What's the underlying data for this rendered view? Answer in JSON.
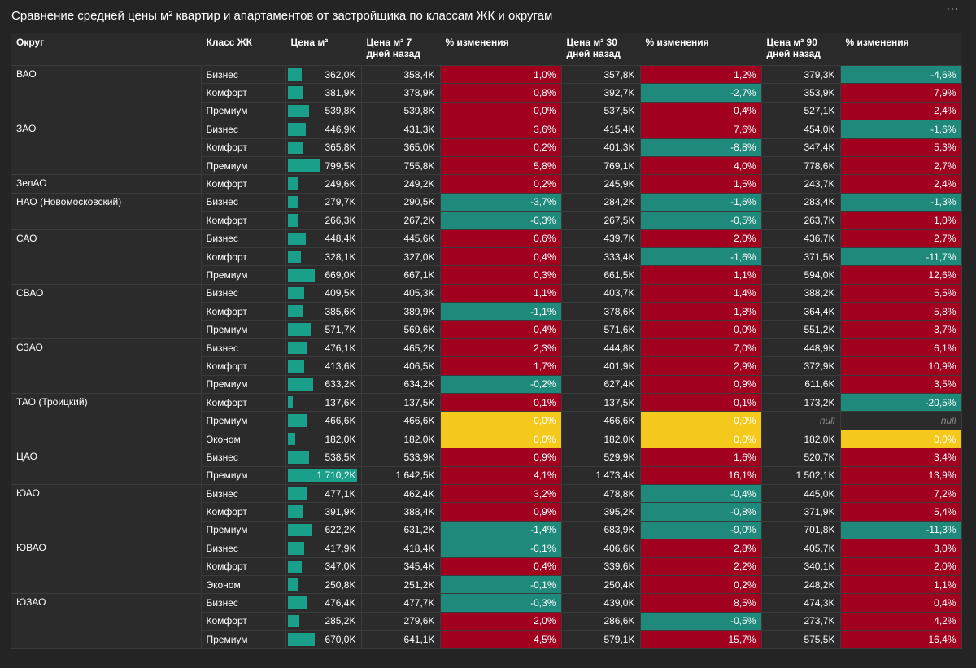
{
  "title": "Сравнение средней цены м² квартир и апартаментов от застройщика по классам ЖК и округам",
  "menu_icon": "more-dots-icon",
  "colors": {
    "positive": "#a1001f",
    "negative": "#1f8a7c",
    "zero": "#f5c81c",
    "bar": "#1aa08a",
    "background": "#242424"
  },
  "headers": {
    "okrug": "Округ",
    "klass": "Класс ЖК",
    "price": "Цена м²",
    "price7": "Цена м² 7 дней назад",
    "chg7": "% изменения",
    "price30": "Цена м² 30 дней назад",
    "chg30": "% изменения",
    "price90": "Цена м² 90 дней назад",
    "chg90": "% изменения"
  },
  "bar_max": 1710.2,
  "groups": [
    {
      "okrug": "ВАО",
      "rows": [
        {
          "klass": "Бизнес",
          "price": "362,0K",
          "price_value": 362.0,
          "p7": "358,4K",
          "c7": "1,0%",
          "c7v": 1.0,
          "p30": "357,8K",
          "c30": "1,2%",
          "c30v": 1.2,
          "p90": "379,3K",
          "c90": "-4,6%",
          "c90v": -4.6
        },
        {
          "klass": "Комфорт",
          "price": "381,9K",
          "price_value": 381.9,
          "p7": "378,9K",
          "c7": "0,8%",
          "c7v": 0.8,
          "p30": "392,7K",
          "c30": "-2,7%",
          "c30v": -2.7,
          "p90": "353,9K",
          "c90": "7,9%",
          "c90v": 7.9
        },
        {
          "klass": "Премиум",
          "price": "539,8K",
          "price_value": 539.8,
          "p7": "539,8K",
          "c7": "0,0%",
          "c7v": 0.01,
          "p30": "537,5K",
          "c30": "0,4%",
          "c30v": 0.4,
          "p90": "527,1K",
          "c90": "2,4%",
          "c90v": 2.4
        }
      ]
    },
    {
      "okrug": "ЗАО",
      "rows": [
        {
          "klass": "Бизнес",
          "price": "446,9K",
          "price_value": 446.9,
          "p7": "431,3K",
          "c7": "3,6%",
          "c7v": 3.6,
          "p30": "415,4K",
          "c30": "7,6%",
          "c30v": 7.6,
          "p90": "454,0K",
          "c90": "-1,6%",
          "c90v": -1.6
        },
        {
          "klass": "Комфорт",
          "price": "365,8K",
          "price_value": 365.8,
          "p7": "365,0K",
          "c7": "0,2%",
          "c7v": 0.2,
          "p30": "401,3K",
          "c30": "-8,8%",
          "c30v": -8.8,
          "p90": "347,4K",
          "c90": "5,3%",
          "c90v": 5.3
        },
        {
          "klass": "Премиум",
          "price": "799,5K",
          "price_value": 799.5,
          "p7": "755,8K",
          "c7": "5,8%",
          "c7v": 5.8,
          "p30": "769,1K",
          "c30": "4,0%",
          "c30v": 4.0,
          "p90": "778,6K",
          "c90": "2,7%",
          "c90v": 2.7
        }
      ]
    },
    {
      "okrug": "ЗелАО",
      "rows": [
        {
          "klass": "Комфорт",
          "price": "249,6K",
          "price_value": 249.6,
          "p7": "249,2K",
          "c7": "0,2%",
          "c7v": 0.2,
          "p30": "245,9K",
          "c30": "1,5%",
          "c30v": 1.5,
          "p90": "243,7K",
          "c90": "2,4%",
          "c90v": 2.4
        }
      ]
    },
    {
      "okrug": "НАО (Новомосковский)",
      "rows": [
        {
          "klass": "Бизнес",
          "price": "279,7K",
          "price_value": 279.7,
          "p7": "290,5K",
          "c7": "-3,7%",
          "c7v": -3.7,
          "p30": "284,2K",
          "c30": "-1,6%",
          "c30v": -1.6,
          "p90": "283,4K",
          "c90": "-1,3%",
          "c90v": -1.3
        },
        {
          "klass": "Комфорт",
          "price": "266,3K",
          "price_value": 266.3,
          "p7": "267,2K",
          "c7": "-0,3%",
          "c7v": -0.3,
          "p30": "267,5K",
          "c30": "-0,5%",
          "c30v": -0.5,
          "p90": "263,7K",
          "c90": "1,0%",
          "c90v": 1.0
        }
      ]
    },
    {
      "okrug": "САО",
      "rows": [
        {
          "klass": "Бизнес",
          "price": "448,4K",
          "price_value": 448.4,
          "p7": "445,6K",
          "c7": "0,6%",
          "c7v": 0.6,
          "p30": "439,7K",
          "c30": "2,0%",
          "c30v": 2.0,
          "p90": "436,7K",
          "c90": "2,7%",
          "c90v": 2.7
        },
        {
          "klass": "Комфорт",
          "price": "328,1K",
          "price_value": 328.1,
          "p7": "327,0K",
          "c7": "0,4%",
          "c7v": 0.4,
          "p30": "333,4K",
          "c30": "-1,6%",
          "c30v": -1.6,
          "p90": "371,5K",
          "c90": "-11,7%",
          "c90v": -11.7
        },
        {
          "klass": "Премиум",
          "price": "669,0K",
          "price_value": 669.0,
          "p7": "667,1K",
          "c7": "0,3%",
          "c7v": 0.3,
          "p30": "661,5K",
          "c30": "1,1%",
          "c30v": 1.1,
          "p90": "594,0K",
          "c90": "12,6%",
          "c90v": 12.6
        }
      ]
    },
    {
      "okrug": "СВАО",
      "rows": [
        {
          "klass": "Бизнес",
          "price": "409,5K",
          "price_value": 409.5,
          "p7": "405,3K",
          "c7": "1,1%",
          "c7v": 1.1,
          "p30": "403,7K",
          "c30": "1,4%",
          "c30v": 1.4,
          "p90": "388,2K",
          "c90": "5,5%",
          "c90v": 5.5
        },
        {
          "klass": "Комфорт",
          "price": "385,6K",
          "price_value": 385.6,
          "p7": "389,9K",
          "c7": "-1,1%",
          "c7v": -1.1,
          "p30": "378,6K",
          "c30": "1,8%",
          "c30v": 1.8,
          "p90": "364,4K",
          "c90": "5,8%",
          "c90v": 5.8
        },
        {
          "klass": "Премиум",
          "price": "571,7K",
          "price_value": 571.7,
          "p7": "569,6K",
          "c7": "0,4%",
          "c7v": 0.4,
          "p30": "571,6K",
          "c30": "0,0%",
          "c30v": 0.01,
          "p90": "551,2K",
          "c90": "3,7%",
          "c90v": 3.7
        }
      ]
    },
    {
      "okrug": "СЗАО",
      "rows": [
        {
          "klass": "Бизнес",
          "price": "476,1K",
          "price_value": 476.1,
          "p7": "465,2K",
          "c7": "2,3%",
          "c7v": 2.3,
          "p30": "444,8K",
          "c30": "7,0%",
          "c30v": 7.0,
          "p90": "448,9K",
          "c90": "6,1%",
          "c90v": 6.1
        },
        {
          "klass": "Комфорт",
          "price": "413,6K",
          "price_value": 413.6,
          "p7": "406,5K",
          "c7": "1,7%",
          "c7v": 1.7,
          "p30": "401,9K",
          "c30": "2,9%",
          "c30v": 2.9,
          "p90": "372,9K",
          "c90": "10,9%",
          "c90v": 10.9
        },
        {
          "klass": "Премиум",
          "price": "633,2K",
          "price_value": 633.2,
          "p7": "634,2K",
          "c7": "-0,2%",
          "c7v": -0.2,
          "p30": "627,4K",
          "c30": "0,9%",
          "c30v": 0.9,
          "p90": "611,6K",
          "c90": "3,5%",
          "c90v": 3.5
        }
      ]
    },
    {
      "okrug": "ТАО (Троицкий)",
      "rows": [
        {
          "klass": "Комфорт",
          "price": "137,6K",
          "price_value": 137.6,
          "p7": "137,5K",
          "c7": "0,1%",
          "c7v": 0.1,
          "p30": "137,5K",
          "c30": "0,1%",
          "c30v": 0.1,
          "p90": "173,2K",
          "c90": "-20,5%",
          "c90v": -20.5
        },
        {
          "klass": "Премиум",
          "price": "466,6K",
          "price_value": 466.6,
          "p7": "466,6K",
          "c7": "0,0%",
          "c7v": 0,
          "p30": "466,6K",
          "c30": "0,0%",
          "c30v": 0,
          "p90": "null",
          "c90": "null",
          "c90v": null
        },
        {
          "klass": "Эконом",
          "price": "182,0K",
          "price_value": 182.0,
          "p7": "182,0K",
          "c7": "0,0%",
          "c7v": 0,
          "p30": "182,0K",
          "c30": "0,0%",
          "c30v": 0,
          "p90": "182,0K",
          "c90": "0,0%",
          "c90v": 0
        }
      ]
    },
    {
      "okrug": "ЦАО",
      "rows": [
        {
          "klass": "Бизнес",
          "price": "538,5K",
          "price_value": 538.5,
          "p7": "533,9K",
          "c7": "0,9%",
          "c7v": 0.9,
          "p30": "529,9K",
          "c30": "1,6%",
          "c30v": 1.6,
          "p90": "520,7K",
          "c90": "3,4%",
          "c90v": 3.4
        },
        {
          "klass": "Премиум",
          "price": "1 710,2K",
          "price_value": 1710.2,
          "p7": "1 642,5K",
          "c7": "4,1%",
          "c7v": 4.1,
          "p30": "1 473,4K",
          "c30": "16,1%",
          "c30v": 16.1,
          "p90": "1 502,1K",
          "c90": "13,9%",
          "c90v": 13.9
        }
      ]
    },
    {
      "okrug": "ЮАО",
      "rows": [
        {
          "klass": "Бизнес",
          "price": "477,1K",
          "price_value": 477.1,
          "p7": "462,4K",
          "c7": "3,2%",
          "c7v": 3.2,
          "p30": "478,8K",
          "c30": "-0,4%",
          "c30v": -0.4,
          "p90": "445,0K",
          "c90": "7,2%",
          "c90v": 7.2
        },
        {
          "klass": "Комфорт",
          "price": "391,9K",
          "price_value": 391.9,
          "p7": "388,4K",
          "c7": "0,9%",
          "c7v": 0.9,
          "p30": "395,2K",
          "c30": "-0,8%",
          "c30v": -0.8,
          "p90": "371,9K",
          "c90": "5,4%",
          "c90v": 5.4
        },
        {
          "klass": "Премиум",
          "price": "622,2K",
          "price_value": 622.2,
          "p7": "631,2K",
          "c7": "-1,4%",
          "c7v": -1.4,
          "p30": "683,9K",
          "c30": "-9,0%",
          "c30v": -9.0,
          "p90": "701,8K",
          "c90": "-11,3%",
          "c90v": -11.3
        }
      ]
    },
    {
      "okrug": "ЮВАО",
      "rows": [
        {
          "klass": "Бизнес",
          "price": "417,9K",
          "price_value": 417.9,
          "p7": "418,4K",
          "c7": "-0,1%",
          "c7v": -0.1,
          "p30": "406,6K",
          "c30": "2,8%",
          "c30v": 2.8,
          "p90": "405,7K",
          "c90": "3,0%",
          "c90v": 3.0
        },
        {
          "klass": "Комфорт",
          "price": "347,0K",
          "price_value": 347.0,
          "p7": "345,4K",
          "c7": "0,4%",
          "c7v": 0.4,
          "p30": "339,6K",
          "c30": "2,2%",
          "c30v": 2.2,
          "p90": "340,1K",
          "c90": "2,0%",
          "c90v": 2.0
        },
        {
          "klass": "Эконом",
          "price": "250,8K",
          "price_value": 250.8,
          "p7": "251,2K",
          "c7": "-0,1%",
          "c7v": -0.1,
          "p30": "250,4K",
          "c30": "0,2%",
          "c30v": 0.2,
          "p90": "248,2K",
          "c90": "1,1%",
          "c90v": 1.1
        }
      ]
    },
    {
      "okrug": "ЮЗАО",
      "rows": [
        {
          "klass": "Бизнес",
          "price": "476,4K",
          "price_value": 476.4,
          "p7": "477,7K",
          "c7": "-0,3%",
          "c7v": -0.3,
          "p30": "439,0K",
          "c30": "8,5%",
          "c30v": 8.5,
          "p90": "474,3K",
          "c90": "0,4%",
          "c90v": 0.4
        },
        {
          "klass": "Комфорт",
          "price": "285,2K",
          "price_value": 285.2,
          "p7": "279,6K",
          "c7": "2,0%",
          "c7v": 2.0,
          "p30": "286,6K",
          "c30": "-0,5%",
          "c30v": -0.5,
          "p90": "273,7K",
          "c90": "4,2%",
          "c90v": 4.2
        },
        {
          "klass": "Премиум",
          "price": "670,0K",
          "price_value": 670.0,
          "p7": "641,1K",
          "c7": "4,5%",
          "c7v": 4.5,
          "p30": "579,1K",
          "c30": "15,7%",
          "c30v": 15.7,
          "p90": "575,5K",
          "c90": "16,4%",
          "c90v": 16.4
        }
      ]
    }
  ]
}
